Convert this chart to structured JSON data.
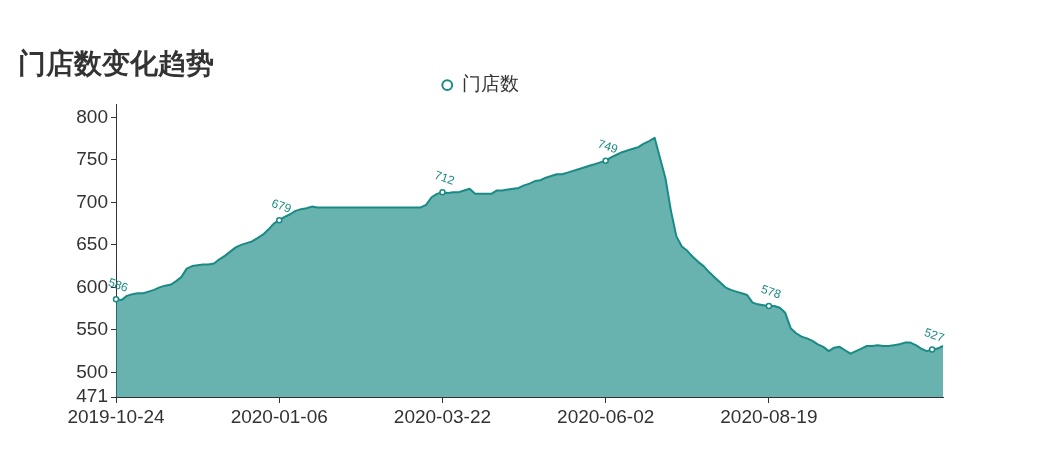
{
  "chart_data": {
    "type": "area",
    "title": "门店数变化趋势",
    "legend": "top",
    "categories": [
      "2019-10-24",
      null,
      null,
      null,
      null,
      null,
      null,
      null,
      null,
      null,
      null,
      null,
      null,
      null,
      null,
      null,
      null,
      null,
      null,
      null,
      null,
      null,
      null,
      null,
      null,
      null,
      null,
      null,
      null,
      null,
      "2020-01-06",
      null,
      null,
      null,
      null,
      null,
      null,
      null,
      null,
      null,
      null,
      null,
      null,
      null,
      null,
      null,
      null,
      null,
      null,
      null,
      null,
      null,
      null,
      null,
      null,
      null,
      null,
      null,
      null,
      null,
      "2020-03-22",
      null,
      null,
      null,
      null,
      null,
      null,
      null,
      null,
      null,
      null,
      null,
      null,
      null,
      null,
      null,
      null,
      null,
      null,
      null,
      null,
      null,
      null,
      null,
      null,
      null,
      null,
      null,
      null,
      null,
      "2020-06-02",
      null,
      null,
      null,
      null,
      null,
      null,
      null,
      null,
      null,
      null,
      null,
      null,
      null,
      null,
      null,
      null,
      null,
      null,
      null,
      null,
      null,
      null,
      null,
      null,
      null,
      null,
      null,
      null,
      null,
      "2020-08-19",
      null,
      null,
      null,
      null,
      null,
      null,
      null,
      null,
      null,
      null,
      null,
      null,
      null,
      null,
      null,
      null,
      null,
      null,
      null,
      null,
      null,
      null,
      null,
      null,
      null,
      null,
      null,
      null,
      null,
      null,
      null,
      null
    ],
    "series": [
      {
        "name": "门店数",
        "color": "#1a8a85",
        "values": [
          586,
          585,
          590,
          592,
          593,
          593,
          595,
          597,
          600,
          602,
          603,
          607,
          612,
          622,
          625,
          626,
          627,
          627,
          628,
          633,
          637,
          642,
          647,
          650,
          652,
          654,
          658,
          662,
          668,
          675,
          679,
          683,
          686,
          690,
          692,
          693,
          695,
          694,
          694,
          694,
          694,
          694,
          694,
          694,
          694,
          694,
          694,
          694,
          694,
          694,
          694,
          694,
          694,
          694,
          694,
          694,
          694,
          697,
          706,
          710,
          712,
          711,
          712,
          712,
          714,
          716,
          710,
          710,
          710,
          710,
          714,
          714,
          715,
          716,
          717,
          720,
          722,
          725,
          726,
          729,
          731,
          733,
          733,
          735,
          737,
          739,
          741,
          743,
          745,
          747,
          749,
          753,
          756,
          759,
          761,
          763,
          765,
          769,
          772,
          776,
          752,
          728,
          690,
          660,
          648,
          643,
          636,
          630,
          625,
          618,
          612,
          606,
          600,
          597,
          595,
          593,
          591,
          582,
          580,
          579,
          578,
          578,
          576,
          570,
          552,
          546,
          542,
          540,
          537,
          533,
          530,
          525,
          529,
          530,
          526,
          522,
          525,
          528,
          531,
          531,
          532,
          531,
          531,
          532,
          533,
          535,
          535,
          532,
          528,
          525,
          527,
          528,
          531
        ],
        "value_labels": [
          "586",
          null,
          null,
          null,
          null,
          null,
          null,
          null,
          null,
          null,
          null,
          null,
          null,
          null,
          null,
          null,
          null,
          null,
          null,
          null,
          null,
          null,
          null,
          null,
          null,
          null,
          null,
          null,
          null,
          null,
          "679",
          null,
          null,
          null,
          null,
          null,
          null,
          null,
          null,
          null,
          null,
          null,
          null,
          null,
          null,
          null,
          null,
          null,
          null,
          null,
          null,
          null,
          null,
          null,
          null,
          null,
          null,
          null,
          null,
          null,
          "712",
          null,
          null,
          null,
          null,
          null,
          null,
          null,
          null,
          null,
          null,
          null,
          null,
          null,
          null,
          null,
          null,
          null,
          null,
          null,
          null,
          null,
          null,
          null,
          null,
          null,
          null,
          null,
          null,
          null,
          "749",
          null,
          null,
          null,
          null,
          null,
          null,
          null,
          null,
          null,
          null,
          null,
          null,
          null,
          null,
          null,
          null,
          null,
          null,
          null,
          null,
          null,
          null,
          null,
          null,
          null,
          null,
          null,
          null,
          null,
          "578",
          null,
          null,
          null,
          null,
          null,
          null,
          null,
          null,
          null,
          null,
          null,
          null,
          null,
          null,
          null,
          null,
          null,
          null,
          null,
          null,
          null,
          null,
          null,
          null,
          null,
          null,
          null,
          null,
          null,
          "527",
          null,
          null
        ]
      }
    ],
    "ylim": [
      471,
      815
    ],
    "yticks": [
      471,
      500,
      550,
      600,
      650,
      700,
      750,
      800
    ]
  }
}
